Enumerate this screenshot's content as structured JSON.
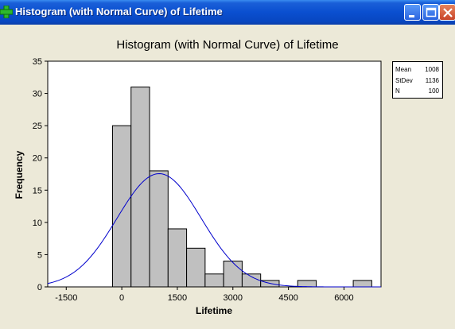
{
  "window": {
    "title": "Histogram (with Normal Curve) of Lifetime",
    "buttons": [
      "minimize",
      "maximize",
      "close"
    ]
  },
  "legend": {
    "rows": [
      {
        "label": "Mean",
        "value": "1008"
      },
      {
        "label": "StDev",
        "value": "1136"
      },
      {
        "label": "N",
        "value": "100"
      }
    ]
  },
  "colors": {
    "bar_fill": "#c0c0c0",
    "curve": "#0000cc",
    "plot_bg": "#ffffff",
    "titlebar": "#0a4fd0"
  },
  "chart_data": {
    "type": "bar",
    "title": "Histogram (with Normal Curve) of Lifetime",
    "xlabel": "Lifetime",
    "ylabel": "Frequency",
    "xlim": [
      -2000,
      7000
    ],
    "ylim": [
      0,
      35
    ],
    "xticks": [
      -1500,
      0,
      1500,
      3000,
      4500,
      6000
    ],
    "yticks": [
      0,
      5,
      10,
      15,
      20,
      25,
      30,
      35
    ],
    "bin_width": 500,
    "bins": [
      {
        "from": -250,
        "to": 250,
        "count": 25
      },
      {
        "from": 250,
        "to": 750,
        "count": 31
      },
      {
        "from": 750,
        "to": 1250,
        "count": 18
      },
      {
        "from": 1250,
        "to": 1750,
        "count": 9
      },
      {
        "from": 1750,
        "to": 2250,
        "count": 6
      },
      {
        "from": 2250,
        "to": 2750,
        "count": 2
      },
      {
        "from": 2750,
        "to": 3250,
        "count": 4
      },
      {
        "from": 3250,
        "to": 3750,
        "count": 2
      },
      {
        "from": 3750,
        "to": 4250,
        "count": 1
      },
      {
        "from": 4250,
        "to": 4750,
        "count": 0
      },
      {
        "from": 4750,
        "to": 5250,
        "count": 1
      },
      {
        "from": 5250,
        "to": 5750,
        "count": 0
      },
      {
        "from": 5750,
        "to": 6250,
        "count": 0
      },
      {
        "from": 6250,
        "to": 6750,
        "count": 1
      }
    ],
    "normal_curve": {
      "mean": 1008,
      "stdev": 1136,
      "n": 100
    }
  }
}
